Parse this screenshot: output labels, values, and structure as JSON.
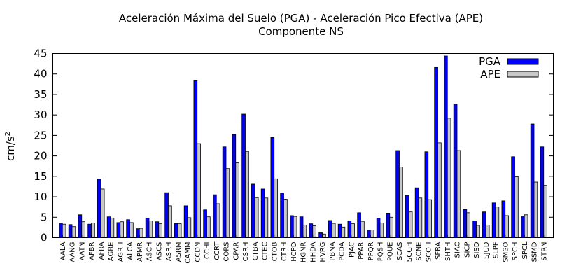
{
  "chart_data": {
    "type": "bar",
    "title": "Aceleración Máxima del Suelo (PGA) -  Aceleración Pico Efectiva (APE)",
    "subtitle": "Componente NS",
    "ylabel_base": "cm/s",
    "ylabel_sup": "2",
    "ylim": [
      0,
      45
    ],
    "yticks": [
      "0",
      "5",
      "10",
      "15",
      "20",
      "25",
      "30",
      "35",
      "40",
      "45"
    ],
    "legend_position": "top-right",
    "categories": [
      "AALA",
      "AANG",
      "AATN",
      "AFBR",
      "AFRA",
      "AGRE",
      "AGRH",
      "ALCA",
      "APMR",
      "ASCH",
      "ASCS",
      "ASRH",
      "ASRM",
      "CAMM",
      "CCDN",
      "CCHI",
      "CCRT",
      "CORS",
      "CPAR",
      "CSRH",
      "CTBA",
      "CTEC",
      "CTOB",
      "CTRH",
      "HCPD",
      "HGNR",
      "HHDA",
      "HVRG",
      "PBNA",
      "PCDA",
      "PJAC",
      "PPAR",
      "PPQR",
      "PQSH",
      "PQUE",
      "SCAS",
      "SCGH",
      "SCNE",
      "SCOH",
      "SFRA",
      "SHTH",
      "SIAC",
      "SICP",
      "SISD",
      "SJUD",
      "SLPF",
      "SMSO",
      "SPCH",
      "SPCL",
      "SSMD",
      "STRN"
    ],
    "series": [
      {
        "name": "PGA",
        "color": "#0000ff",
        "values": [
          3.6,
          3.2,
          5.6,
          3.3,
          14.3,
          5.1,
          3.7,
          4.4,
          2.2,
          4.8,
          3.9,
          11.0,
          3.5,
          7.8,
          38.4,
          6.8,
          10.5,
          22.2,
          25.2,
          30.2,
          13.1,
          11.9,
          24.5,
          10.9,
          5.4,
          5.1,
          3.4,
          1.2,
          4.2,
          3.3,
          4.1,
          6.1,
          1.9,
          4.8,
          6.0,
          21.3,
          10.4,
          12.2,
          21.0,
          41.6,
          44.4,
          32.7,
          6.9,
          4.1,
          6.3,
          8.5,
          9.0,
          19.8,
          5.3,
          27.8,
          22.2
        ]
      },
      {
        "name": "APE",
        "color": "#c8c8c8",
        "values": [
          3.3,
          2.7,
          3.9,
          3.6,
          11.9,
          4.8,
          3.9,
          3.7,
          2.3,
          4.1,
          3.4,
          7.8,
          3.4,
          4.9,
          23.0,
          5.1,
          8.3,
          16.9,
          18.3,
          21.1,
          9.8,
          9.7,
          14.4,
          9.4,
          5.2,
          3.1,
          2.9,
          0.9,
          3.5,
          2.6,
          3.4,
          4.0,
          1.9,
          3.6,
          5.0,
          17.3,
          6.3,
          9.7,
          9.3,
          23.2,
          29.2,
          21.3,
          6.1,
          3.0,
          3.1,
          7.5,
          5.4,
          14.9,
          5.6,
          13.6,
          12.8
        ]
      }
    ]
  }
}
